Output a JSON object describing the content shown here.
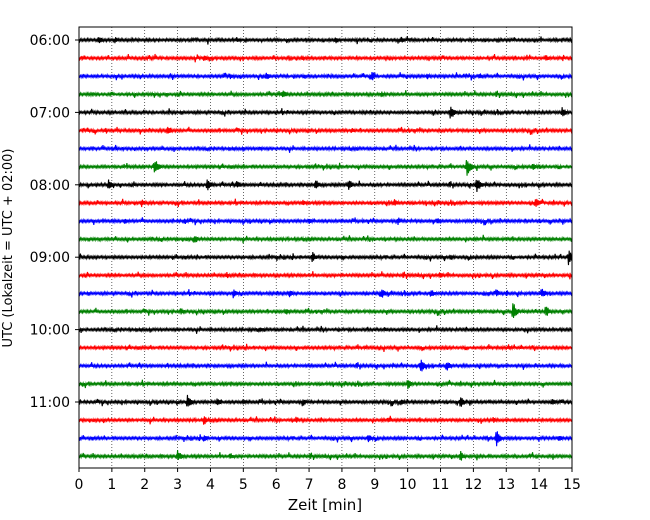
{
  "chart_data": {
    "type": "line",
    "subtype": "helicorder",
    "xlabel": "Zeit  [min]",
    "ylabel": "UTC (Lokalzeit = UTC + 02:00)",
    "xlim": [
      0,
      15
    ],
    "x_ticks": [
      0,
      1,
      2,
      3,
      4,
      5,
      6,
      7,
      8,
      9,
      10,
      11,
      12,
      13,
      14,
      15
    ],
    "y_tick_labels": [
      "06:00",
      "07:00",
      "08:00",
      "09:00",
      "10:00",
      "11:00"
    ],
    "grid": "vertical dotted lines at each minute",
    "trace_interval_minutes": 15,
    "color_cycle": [
      "#000000",
      "#ff0000",
      "#0000ff",
      "#008000"
    ],
    "traces": [
      {
        "start": "06:00",
        "color": "#000000",
        "events": [
          {
            "t": 0.6,
            "a": 0.45
          },
          {
            "t": 1.1,
            "a": 0.35
          },
          {
            "t": 4.8,
            "a": 0.3
          },
          {
            "t": 7.8,
            "a": 0.35
          },
          {
            "t": 9.8,
            "a": 0.35
          }
        ]
      },
      {
        "start": "06:15",
        "color": "#ff0000",
        "events": [
          {
            "t": 3.8,
            "a": 0.4
          },
          {
            "t": 6.8,
            "a": 0.3
          },
          {
            "t": 14.2,
            "a": 0.4
          }
        ]
      },
      {
        "start": "06:30",
        "color": "#0000ff",
        "events": [
          {
            "t": 4.6,
            "a": 0.35
          },
          {
            "t": 5.7,
            "a": 0.4
          },
          {
            "t": 8.9,
            "a": 0.55
          },
          {
            "t": 10.6,
            "a": 0.3
          },
          {
            "t": 12.2,
            "a": 0.3
          }
        ]
      },
      {
        "start": "06:45",
        "color": "#008000",
        "events": [
          {
            "t": 6.2,
            "a": 0.5
          },
          {
            "t": 9.2,
            "a": 0.3
          }
        ]
      },
      {
        "start": "07:00",
        "color": "#000000",
        "events": [
          {
            "t": 11.3,
            "a": 0.75
          },
          {
            "t": 14.7,
            "a": 0.6
          }
        ]
      },
      {
        "start": "07:15",
        "color": "#ff0000",
        "events": [
          {
            "t": 2.7,
            "a": 0.5
          },
          {
            "t": 8.3,
            "a": 0.3
          }
        ]
      },
      {
        "start": "07:30",
        "color": "#0000ff",
        "events": [
          {
            "t": 5.5,
            "a": 0.25
          },
          {
            "t": 12.4,
            "a": 0.2
          }
        ]
      },
      {
        "start": "07:45",
        "color": "#008000",
        "events": [
          {
            "t": 2.3,
            "a": 0.85
          },
          {
            "t": 11.8,
            "a": 0.95
          },
          {
            "t": 13.8,
            "a": 0.4
          }
        ]
      },
      {
        "start": "08:00",
        "color": "#000000",
        "events": [
          {
            "t": 0.9,
            "a": 0.5
          },
          {
            "t": 3.9,
            "a": 0.65
          },
          {
            "t": 4.8,
            "a": 0.45
          },
          {
            "t": 7.2,
            "a": 0.55
          },
          {
            "t": 8.2,
            "a": 0.6
          },
          {
            "t": 12.1,
            "a": 0.8
          }
        ]
      },
      {
        "start": "08:15",
        "color": "#ff0000",
        "events": [
          {
            "t": 1.9,
            "a": 0.4
          },
          {
            "t": 6.8,
            "a": 0.35
          },
          {
            "t": 9.6,
            "a": 0.4
          },
          {
            "t": 13.9,
            "a": 0.5
          }
        ]
      },
      {
        "start": "08:30",
        "color": "#0000ff",
        "events": [
          {
            "t": 1.4,
            "a": 0.35
          },
          {
            "t": 3.2,
            "a": 0.4
          },
          {
            "t": 7.0,
            "a": 0.35
          },
          {
            "t": 9.7,
            "a": 0.4
          },
          {
            "t": 10.9,
            "a": 0.35
          }
        ]
      },
      {
        "start": "08:45",
        "color": "#008000",
        "events": [
          {
            "t": 3.5,
            "a": 0.45
          }
        ]
      },
      {
        "start": "09:00",
        "color": "#000000",
        "events": [
          {
            "t": 7.1,
            "a": 0.55
          },
          {
            "t": 11.3,
            "a": 0.35
          },
          {
            "t": 14.9,
            "a": 0.95
          }
        ]
      },
      {
        "start": "09:15",
        "color": "#ff0000",
        "events": [
          {
            "t": 4.5,
            "a": 0.3
          },
          {
            "t": 11.0,
            "a": 0.3
          }
        ]
      },
      {
        "start": "09:30",
        "color": "#0000ff",
        "events": [
          {
            "t": 4.7,
            "a": 0.55
          },
          {
            "t": 6.4,
            "a": 0.4
          },
          {
            "t": 9.2,
            "a": 0.55
          },
          {
            "t": 10.7,
            "a": 0.45
          },
          {
            "t": 12.7,
            "a": 0.45
          },
          {
            "t": 14.1,
            "a": 0.5
          }
        ]
      },
      {
        "start": "09:45",
        "color": "#008000",
        "events": [
          {
            "t": 3.1,
            "a": 0.4
          },
          {
            "t": 6.3,
            "a": 0.35
          },
          {
            "t": 13.2,
            "a": 0.95
          },
          {
            "t": 14.2,
            "a": 0.6
          }
        ]
      },
      {
        "start": "10:00",
        "color": "#000000",
        "events": [
          {
            "t": 5.5,
            "a": 0.25
          },
          {
            "t": 9.3,
            "a": 0.25
          }
        ]
      },
      {
        "start": "10:15",
        "color": "#ff0000",
        "events": [
          {
            "t": 8.7,
            "a": 0.25
          },
          {
            "t": 13.1,
            "a": 0.2
          }
        ]
      },
      {
        "start": "10:30",
        "color": "#0000ff",
        "events": [
          {
            "t": 10.4,
            "a": 0.75
          },
          {
            "t": 11.2,
            "a": 0.45
          }
        ]
      },
      {
        "start": "10:45",
        "color": "#008000",
        "events": [
          {
            "t": 10.0,
            "a": 0.55
          }
        ]
      },
      {
        "start": "11:00",
        "color": "#000000",
        "events": [
          {
            "t": 3.3,
            "a": 0.75
          },
          {
            "t": 4.2,
            "a": 0.45
          },
          {
            "t": 5.0,
            "a": 0.3
          },
          {
            "t": 6.8,
            "a": 0.45
          },
          {
            "t": 9.8,
            "a": 0.35
          },
          {
            "t": 11.6,
            "a": 0.65
          },
          {
            "t": 14.4,
            "a": 0.35
          }
        ]
      },
      {
        "start": "11:15",
        "color": "#ff0000",
        "events": [
          {
            "t": 3.8,
            "a": 0.55
          },
          {
            "t": 6.6,
            "a": 0.35
          },
          {
            "t": 9.4,
            "a": 0.35
          },
          {
            "t": 12.6,
            "a": 0.3
          }
        ]
      },
      {
        "start": "11:30",
        "color": "#0000ff",
        "events": [
          {
            "t": 3.8,
            "a": 0.45
          },
          {
            "t": 8.8,
            "a": 0.45
          },
          {
            "t": 12.7,
            "a": 0.9
          },
          {
            "t": 14.6,
            "a": 0.4
          }
        ]
      },
      {
        "start": "11:45",
        "color": "#008000",
        "events": [
          {
            "t": 3.0,
            "a": 0.6
          },
          {
            "t": 4.6,
            "a": 0.35
          },
          {
            "t": 11.6,
            "a": 0.55
          }
        ]
      }
    ]
  }
}
